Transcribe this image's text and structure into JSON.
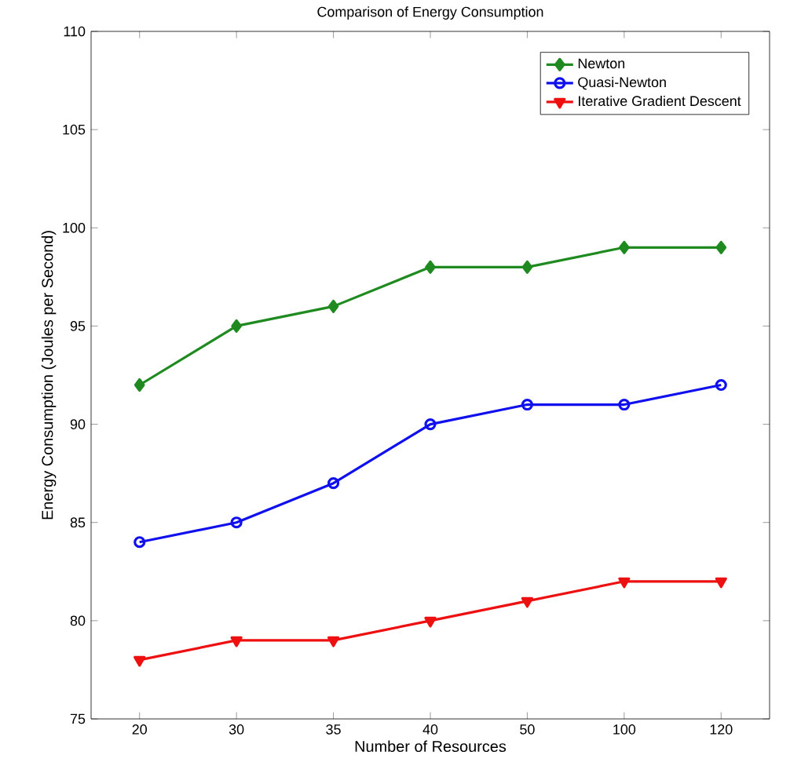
{
  "chart_data": {
    "type": "line",
    "title": "Comparison of Energy Consumption",
    "xlabel": "Number of Resources",
    "ylabel": "Energy Consumption (Joules per Second)",
    "categories": [
      "20",
      "30",
      "35",
      "40",
      "50",
      "100",
      "120"
    ],
    "series": [
      {
        "name": "Newton",
        "color": "#1f8a1f",
        "marker": "diamond",
        "values": [
          92,
          95,
          96,
          98,
          98,
          99,
          99
        ]
      },
      {
        "name": "Quasi-Newton",
        "color": "#1010ee",
        "marker": "circle",
        "values": [
          84,
          85,
          87,
          90,
          91,
          91,
          92
        ]
      },
      {
        "name": "Iterative Gradient Descent",
        "color": "#ee1010",
        "marker": "triangle",
        "values": [
          78,
          79,
          79,
          80,
          81,
          82,
          82
        ]
      }
    ],
    "ylim": [
      75,
      110
    ],
    "yticks": [
      75,
      80,
      85,
      90,
      95,
      100,
      105,
      110
    ],
    "grid": false,
    "legend": "top right",
    "line_style": "solid"
  }
}
